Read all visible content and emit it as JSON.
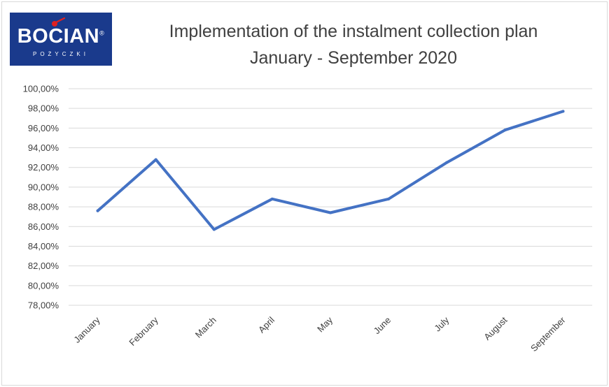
{
  "logo": {
    "brand": "BOCIAN",
    "registered": "®",
    "subtitle": "POŻYCZKI",
    "icon": "stork-icon",
    "color": "#1a3a8c"
  },
  "chart_data": {
    "type": "line",
    "title": "Implementation of the instalment collection plan",
    "subtitle": "January - September 2020",
    "categories": [
      "January",
      "February",
      "March",
      "April",
      "May",
      "June",
      "July",
      "August",
      "September"
    ],
    "series": [
      {
        "color": "#4472c4",
        "values": [
          87.6,
          92.8,
          85.7,
          88.8,
          87.4,
          88.8,
          92.5,
          95.8,
          97.7
        ]
      }
    ],
    "ylim": [
      78,
      100
    ],
    "yticks": [
      "78,00%",
      "80,00%",
      "82,00%",
      "84,00%",
      "86,00%",
      "88,00%",
      "90,00%",
      "92,00%",
      "94,00%",
      "96,00%",
      "98,00%",
      "100,00%"
    ],
    "ytick_values": [
      78,
      80,
      82,
      84,
      86,
      88,
      90,
      92,
      94,
      96,
      98,
      100
    ],
    "grid": true,
    "legend": "none"
  }
}
